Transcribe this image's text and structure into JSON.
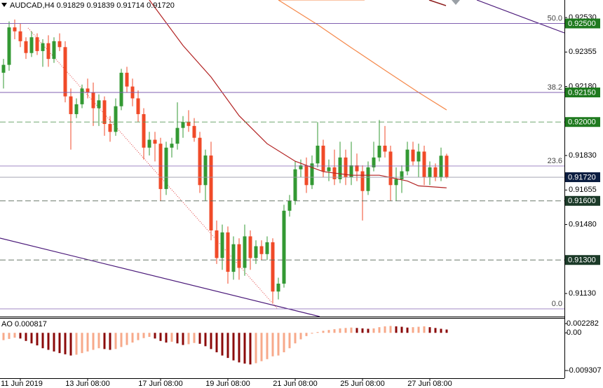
{
  "chart_data": [
    {
      "type": "candlestick",
      "title": "AUDCAD,H4  0.91829 0.91839 0.91714 0.91720",
      "categories": [
        null,
        null,
        null,
        "11 Jun 2019",
        null,
        null,
        null,
        null,
        null,
        null,
        null,
        null,
        null,
        null,
        null,
        "13 Jun 08:00",
        null,
        null,
        null,
        null,
        null,
        null,
        null,
        null,
        null,
        null,
        null,
        null,
        "17 Jun 08:00",
        null,
        null,
        null,
        null,
        null,
        null,
        null,
        null,
        null,
        null,
        null,
        "19 Jun 08:00",
        null,
        null,
        null,
        null,
        null,
        null,
        null,
        null,
        null,
        null,
        null,
        "21 Jun 08:00",
        null,
        null,
        null,
        null,
        null,
        null,
        null,
        null,
        null,
        null,
        null,
        "25 Jun 08:00",
        null,
        null,
        null,
        null,
        null,
        null,
        null,
        null,
        null,
        null,
        null,
        "27 Jun 08:00",
        null,
        null,
        null
      ],
      "open": [
        0.9225,
        0.9229,
        0.9248,
        0.9246,
        0.9241,
        0.9235,
        0.9243,
        0.9236,
        0.924,
        0.9232,
        0.9241,
        0.9238,
        0.9213,
        0.9204,
        0.9209,
        0.9217,
        0.9215,
        0.9207,
        0.9211,
        0.9199,
        0.9195,
        0.9208,
        0.9225,
        0.9218,
        0.9212,
        0.9204,
        0.9187,
        0.9191,
        0.9189,
        0.9166,
        0.9187,
        0.9189,
        0.9197,
        0.92,
        0.9198,
        0.9192,
        0.9168,
        0.9183,
        0.9145,
        0.9131,
        0.9144,
        0.9124,
        0.9138,
        0.9126,
        0.9142,
        0.9131,
        0.9137,
        0.9133,
        0.9139,
        0.9114,
        0.9118,
        0.9155,
        0.916,
        0.9176,
        0.9178,
        0.9168,
        0.9179,
        0.9188,
        0.9175,
        0.9177,
        0.9171,
        0.9182,
        0.9172,
        0.9178,
        0.9175,
        0.9165,
        0.9177,
        0.9182,
        0.9188,
        0.9185,
        0.9168,
        0.9171,
        0.9175,
        0.9186,
        0.918,
        0.9185,
        0.9172,
        0.9177,
        0.9172,
        0.91829
      ],
      "high": [
        0.9232,
        0.9251,
        0.9252,
        0.925,
        0.9243,
        0.9246,
        0.9245,
        0.9242,
        0.9244,
        0.9243,
        0.9245,
        0.9241,
        0.9217,
        0.9212,
        0.9219,
        0.9222,
        0.922,
        0.9214,
        0.9213,
        0.9203,
        0.9212,
        0.9227,
        0.9228,
        0.9222,
        0.9216,
        0.9207,
        0.9195,
        0.9195,
        0.9192,
        0.919,
        0.9192,
        0.921,
        0.9203,
        0.9206,
        0.9202,
        0.9195,
        0.9186,
        0.919,
        0.915,
        0.9148,
        0.9147,
        0.9142,
        0.9141,
        0.9148,
        0.9145,
        0.914,
        0.914,
        0.9142,
        0.9141,
        0.9121,
        0.9158,
        0.9163,
        0.918,
        0.9181,
        0.9182,
        0.9183,
        0.92,
        0.9191,
        0.9181,
        0.9186,
        0.919,
        0.9186,
        0.919,
        0.9184,
        0.9178,
        0.918,
        0.919,
        0.9201,
        0.9198,
        0.9188,
        0.9177,
        0.9178,
        0.919,
        0.919,
        0.9189,
        0.9188,
        0.918,
        0.9179,
        0.9187,
        0.91839
      ],
      "low": [
        0.9217,
        0.9226,
        0.9242,
        0.9238,
        0.9232,
        0.9233,
        0.9234,
        0.9228,
        0.9228,
        0.923,
        0.9236,
        0.921,
        0.9186,
        0.9202,
        0.9207,
        0.9212,
        0.9198,
        0.9198,
        0.9193,
        0.919,
        0.9193,
        0.9206,
        0.9215,
        0.9208,
        0.92,
        0.9181,
        0.9183,
        0.918,
        0.916,
        0.9163,
        0.9182,
        0.9186,
        0.9192,
        0.9195,
        0.919,
        0.9164,
        0.916,
        0.914,
        0.9128,
        0.9125,
        0.9118,
        0.912,
        0.912,
        0.9122,
        0.9125,
        0.9128,
        0.913,
        0.913,
        0.9108,
        0.911,
        0.9116,
        0.9152,
        0.9158,
        0.9172,
        0.9164,
        0.9166,
        0.9177,
        0.9172,
        0.917,
        0.9168,
        0.9169,
        0.9168,
        0.9168,
        0.917,
        0.915,
        0.9163,
        0.9175,
        0.918,
        0.9182,
        0.916,
        0.916,
        0.9164,
        0.9173,
        0.9178,
        0.9172,
        0.9168,
        0.9168,
        0.917,
        0.917,
        0.91714
      ],
      "close": [
        0.9229,
        0.9248,
        0.9246,
        0.9241,
        0.9235,
        0.9243,
        0.9236,
        0.924,
        0.9232,
        0.9241,
        0.9238,
        0.9213,
        0.9204,
        0.9209,
        0.9217,
        0.9215,
        0.9207,
        0.9211,
        0.9199,
        0.9195,
        0.9208,
        0.9225,
        0.9218,
        0.9212,
        0.9204,
        0.9187,
        0.9191,
        0.9189,
        0.9166,
        0.9187,
        0.9189,
        0.9197,
        0.92,
        0.9198,
        0.9192,
        0.9168,
        0.9183,
        0.9145,
        0.9131,
        0.9144,
        0.9124,
        0.9138,
        0.9126,
        0.9142,
        0.9131,
        0.9137,
        0.9133,
        0.9139,
        0.9114,
        0.9118,
        0.9155,
        0.916,
        0.9176,
        0.9178,
        0.9168,
        0.9179,
        0.9188,
        0.9175,
        0.9177,
        0.9171,
        0.9182,
        0.9172,
        0.9178,
        0.9175,
        0.9165,
        0.9177,
        0.9182,
        0.9188,
        0.9185,
        0.9168,
        0.9171,
        0.9175,
        0.9186,
        0.918,
        0.9185,
        0.9172,
        0.9177,
        0.9172,
        0.91829,
        0.9172
      ],
      "up_color": "#339933",
      "down_color": "#f04a28",
      "ylim": [
        0.91013,
        0.92619
      ],
      "yticks": [
        {
          "value": 0.9253,
          "label": "0.92530"
        },
        {
          "value": 0.92355,
          "label": "0.92355"
        },
        {
          "value": 0.9218,
          "label": "0.92180"
        },
        {
          "value": 0.92005,
          "label": "0.92005"
        },
        {
          "value": 0.9183,
          "label": "0.91830"
        },
        {
          "value": 0.91655,
          "label": "0.91655"
        },
        {
          "value": 0.9148,
          "label": "0.91480"
        },
        {
          "value": 0.91305,
          "label": "0.91305"
        },
        {
          "value": 0.9113,
          "label": "0.91130"
        }
      ],
      "lines": [
        {
          "color": "#b22222",
          "x": [
            26,
            32,
            37,
            42,
            47,
            52,
            57,
            62,
            67,
            72,
            74,
            79
          ],
          "values": [
            0.92619,
            0.92388,
            0.92228,
            0.92032,
            0.9189,
            0.91801,
            0.91748,
            0.9173,
            0.9173,
            0.91701,
            0.91676,
            0.91666
          ]
        },
        {
          "color": "#f5884a",
          "x": [
            49,
            56,
            62,
            68,
            74,
            79
          ],
          "values": [
            0.92619,
            0.92494,
            0.92377,
            0.92263,
            0.9215,
            0.92061
          ]
        }
      ],
      "fib_levels": [
        {
          "name": "50.0",
          "price": 0.925
        },
        {
          "name": "38.2",
          "price": 0.9215
        },
        {
          "name": "23.6",
          "price": 0.91777
        },
        {
          "name": "0.0",
          "price": 0.91052
        }
      ],
      "fib_color": "#8060b0",
      "levels": [
        {
          "value": 0.925,
          "label": "0.92500",
          "color": "#8060b0",
          "dashed": false,
          "box_color": "#1f7a1f"
        },
        {
          "value": 0.9215,
          "label": "0.92150",
          "color": "#8060b0",
          "dashed": false,
          "box_color": "#1f7a1f"
        },
        {
          "value": 0.92,
          "label": "0.92000",
          "color": "#5a9a5a",
          "dashed": true,
          "box_color": "#1f7a1f"
        },
        {
          "value": 0.9172,
          "label": "0.91720",
          "color": "#9a9aa8",
          "dashed": false,
          "box_color": "#0b1d40"
        },
        {
          "value": 0.916,
          "label": "0.91600",
          "color": "#556655",
          "dashed": true,
          "box_color": "#1b3a28"
        },
        {
          "value": 0.913,
          "label": "0.91300",
          "color": "#556655",
          "dashed": true,
          "box_color": "#1b3a28"
        }
      ]
    },
    {
      "type": "bar",
      "title": "AO 0.000817",
      "values": [
        -0.0018,
        -0.0015,
        -0.0012,
        -0.0014,
        -0.002,
        -0.0026,
        -0.0031,
        -0.0038,
        -0.0042,
        -0.0046,
        -0.005,
        -0.0053,
        -0.0056,
        -0.0054,
        -0.005,
        -0.0046,
        -0.0042,
        -0.0038,
        -0.004,
        -0.0042,
        -0.004,
        -0.0035,
        -0.003,
        -0.0024,
        -0.0018,
        -0.0013,
        -0.001,
        -0.0014,
        -0.002,
        -0.0024,
        -0.0022,
        -0.0026,
        -0.003,
        -0.0028,
        -0.0025,
        -0.0027,
        -0.0033,
        -0.004,
        -0.0048,
        -0.0056,
        -0.0062,
        -0.0068,
        -0.0073,
        -0.0076,
        -0.0078,
        -0.0075,
        -0.007,
        -0.0065,
        -0.0058,
        -0.0056,
        -0.0048,
        -0.0038,
        -0.0026,
        -0.0016,
        -0.0008,
        -0.0002,
        0.0002,
        0.0005,
        0.0007,
        0.0009,
        0.0011,
        0.0012,
        0.0013,
        0.0012,
        0.0011,
        0.001,
        0.0011,
        0.0014,
        0.0016,
        0.0017,
        0.0016,
        0.0015,
        0.0013,
        0.0014,
        0.0015,
        0.0016,
        0.0014,
        0.0012,
        0.001,
        0.000817
      ],
      "up_color": "#f7a98a",
      "down_color": "#8b0a0a",
      "ylim": [
        -0.0112,
        0.0035
      ],
      "yticks": [
        0.002282,
        {
          "value": 0,
          "label": "0.00"
        },
        -0.009307
      ]
    }
  ]
}
